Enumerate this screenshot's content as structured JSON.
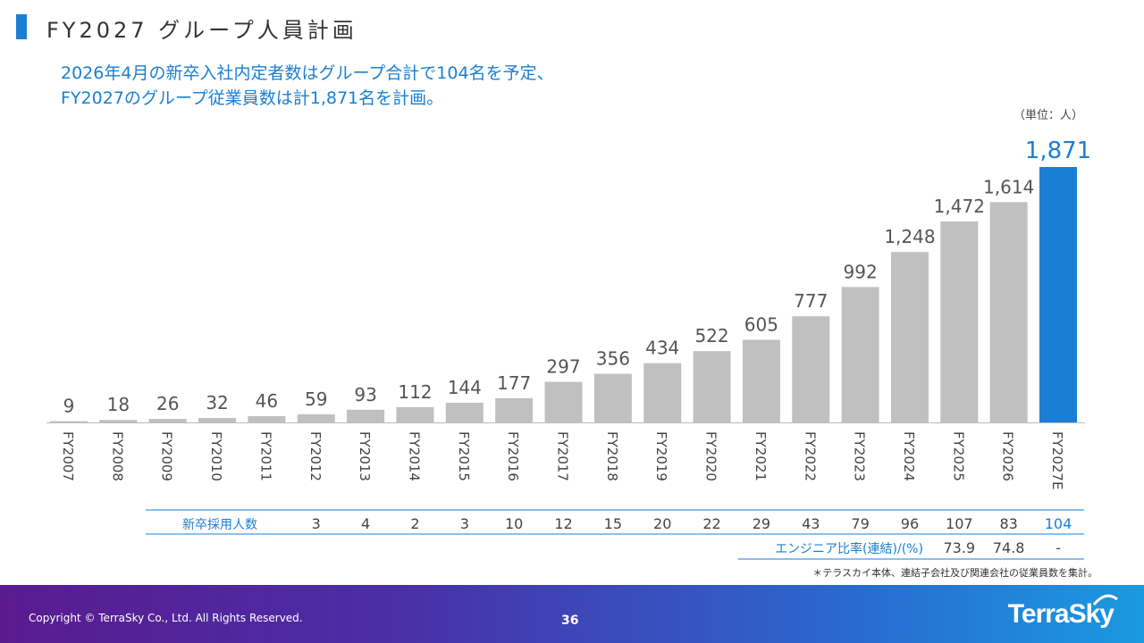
{
  "header": {
    "title": "FY2027 グループ人員計画",
    "subtitle_line1": "2026年4月の新卒入社内定者数はグループ合計で104名を予定、",
    "subtitle_line2": "FY2027のグループ従業員数は計1,871名を計画。",
    "unit": "（単位：人）"
  },
  "colors": {
    "accent": "#1a7fd4",
    "bar": "#c0c0c0",
    "highlight_bar": "#1a7fd4"
  },
  "chart_data": {
    "type": "bar",
    "title": "FY2027 グループ人員計画",
    "categories": [
      "FY2007",
      "FY2008",
      "FY2009",
      "FY2010",
      "FY2011",
      "FY2012",
      "FY2013",
      "FY2014",
      "FY2015",
      "FY2016",
      "FY2017",
      "FY2018",
      "FY2019",
      "FY2020",
      "FY2021",
      "FY2022",
      "FY2023",
      "FY2024",
      "FY2025",
      "FY2026",
      "FY2027E"
    ],
    "values": [
      9,
      18,
      26,
      32,
      46,
      59,
      93,
      112,
      144,
      177,
      297,
      356,
      434,
      522,
      605,
      777,
      992,
      1248,
      1472,
      1614,
      1871
    ],
    "value_labels": [
      "9",
      "18",
      "26",
      "32",
      "46",
      "59",
      "93",
      "112",
      "144",
      "177",
      "297",
      "356",
      "434",
      "522",
      "605",
      "777",
      "992",
      "1,248",
      "1,472",
      "1,614",
      "1,871"
    ],
    "highlight": "FY2027E",
    "ylim": [
      0,
      1900
    ],
    "xlabel": "",
    "ylabel": "人",
    "table_rows": [
      {
        "label": "新卒採用人数",
        "start_category": "FY2012",
        "values": [
          "3",
          "4",
          "2",
          "3",
          "10",
          "12",
          "15",
          "20",
          "22",
          "29",
          "43",
          "79",
          "96",
          "107",
          "83",
          "104"
        ]
      },
      {
        "label": "エンジニア比率(連結)/(%)",
        "start_category": "FY2025",
        "values": [
          "73.9",
          "74.8",
          "-"
        ]
      }
    ]
  },
  "footnote": "＊テラスカイ本体、連結子会社及び関連会社の従業員数を集計。",
  "footer": {
    "copyright": "Copyright © TerraSky Co., Ltd. All Rights Reserved.",
    "page_number": "36",
    "logo_text": "TerraSky"
  }
}
